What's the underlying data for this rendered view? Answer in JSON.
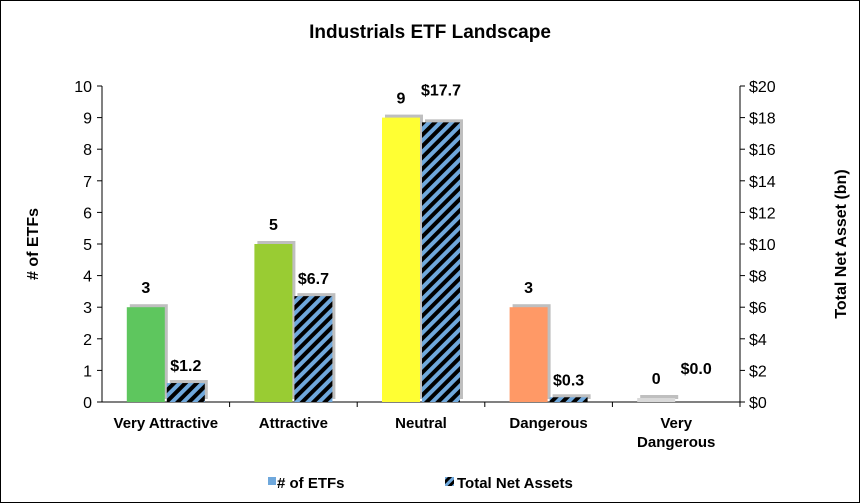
{
  "chart_data": {
    "type": "bar",
    "title": "Industrials ETF Landscape",
    "categories": [
      [
        "Very Attractive"
      ],
      [
        "Attractive"
      ],
      [
        "Neutral"
      ],
      [
        "Dangerous"
      ],
      [
        "Very",
        "Dangerous"
      ]
    ],
    "series": [
      {
        "name": "# of ETFs",
        "axis": "left",
        "values": [
          3,
          5,
          9,
          3,
          0
        ],
        "labels": [
          "3",
          "5",
          "9",
          "3",
          "0"
        ],
        "colors": [
          "#5ec65e",
          "#99cc33",
          "#ffff33",
          "#ff9966",
          "#d9d9d9"
        ]
      },
      {
        "name": "Total Net Assets",
        "axis": "right",
        "values": [
          1.2,
          6.7,
          17.7,
          0.3,
          0.0
        ],
        "labels": [
          "$1.2",
          "$6.7",
          "$17.7",
          "$0.3",
          "$0.0"
        ],
        "fill": "hatched blue/black",
        "colors": [
          "#6fa8dc",
          "#000000"
        ]
      }
    ],
    "ylabel": "# of ETFs",
    "ylim": [
      0,
      10
    ],
    "yticks": [
      "0",
      "1",
      "2",
      "3",
      "4",
      "5",
      "6",
      "7",
      "8",
      "9",
      "10"
    ],
    "y2label": "Total Net Asset (bn)",
    "y2lim": [
      0,
      20
    ],
    "y2ticks": [
      "$0",
      "$2",
      "$4",
      "$6",
      "$8",
      "$10",
      "$12",
      "$14",
      "$16",
      "$18",
      "$20"
    ],
    "grid": false,
    "legend": "bottom"
  }
}
